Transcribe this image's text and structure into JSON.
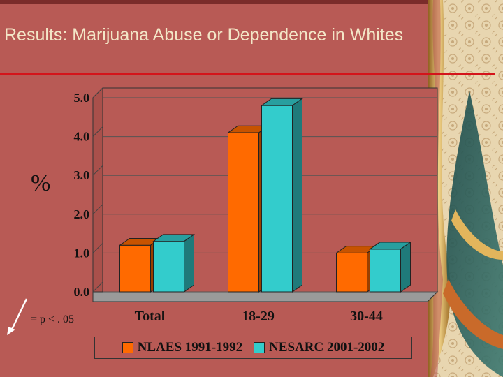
{
  "slide": {
    "title": "Results:  Marijuana Abuse or Dependence in Whites",
    "y_unit": "%",
    "significance_note": "= p < . 05"
  },
  "colors": {
    "background": "#b85a55",
    "title_text": "#f3e6c7",
    "rule": "#d4141a",
    "series_1": "#ff6a00",
    "series_2": "#33cccc"
  },
  "chart_data": {
    "type": "bar",
    "categories": [
      "Total",
      "18-29",
      "30-44"
    ],
    "series": [
      {
        "name": "NLAES 1991-1992",
        "values": [
          1.2,
          4.1,
          1.0
        ],
        "color": "#ff6a00"
      },
      {
        "name": "NESARC 2001-2002",
        "values": [
          1.3,
          4.8,
          1.1
        ],
        "color": "#33cccc"
      }
    ],
    "y_ticks": [
      "0.0",
      "1.0",
      "2.0",
      "3.0",
      "4.0",
      "5.0"
    ],
    "ylim": [
      0,
      5
    ],
    "ylabel": "%",
    "grid": true,
    "legend_position": "bottom",
    "style": "3d"
  }
}
